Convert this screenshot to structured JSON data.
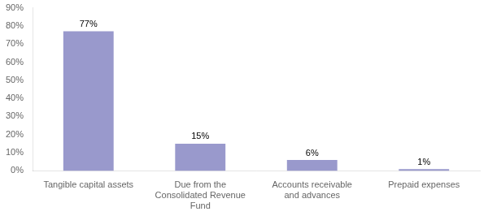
{
  "chart_data": {
    "type": "bar",
    "categories": [
      "Tangible capital assets",
      "Due from the\nConsolidated Revenue\nFund",
      "Accounts receivable\nand advances",
      "Prepaid expenses"
    ],
    "values": [
      77,
      15,
      6,
      1
    ],
    "value_labels": [
      "77%",
      "15%",
      "6%",
      "1%"
    ],
    "color": "#9999cc",
    "ylim": [
      0,
      90
    ],
    "yticks": [
      {
        "value": 0,
        "label": "0%"
      },
      {
        "value": 10,
        "label": "10%"
      },
      {
        "value": 20,
        "label": "20%"
      },
      {
        "value": 30,
        "label": "30%"
      },
      {
        "value": 40,
        "label": "40%"
      },
      {
        "value": 50,
        "label": "50%"
      },
      {
        "value": 60,
        "label": "60%"
      },
      {
        "value": 70,
        "label": "70%"
      },
      {
        "value": 80,
        "label": "80%"
      },
      {
        "value": 90,
        "label": "90%"
      }
    ],
    "grid": false,
    "data_labels": true
  }
}
